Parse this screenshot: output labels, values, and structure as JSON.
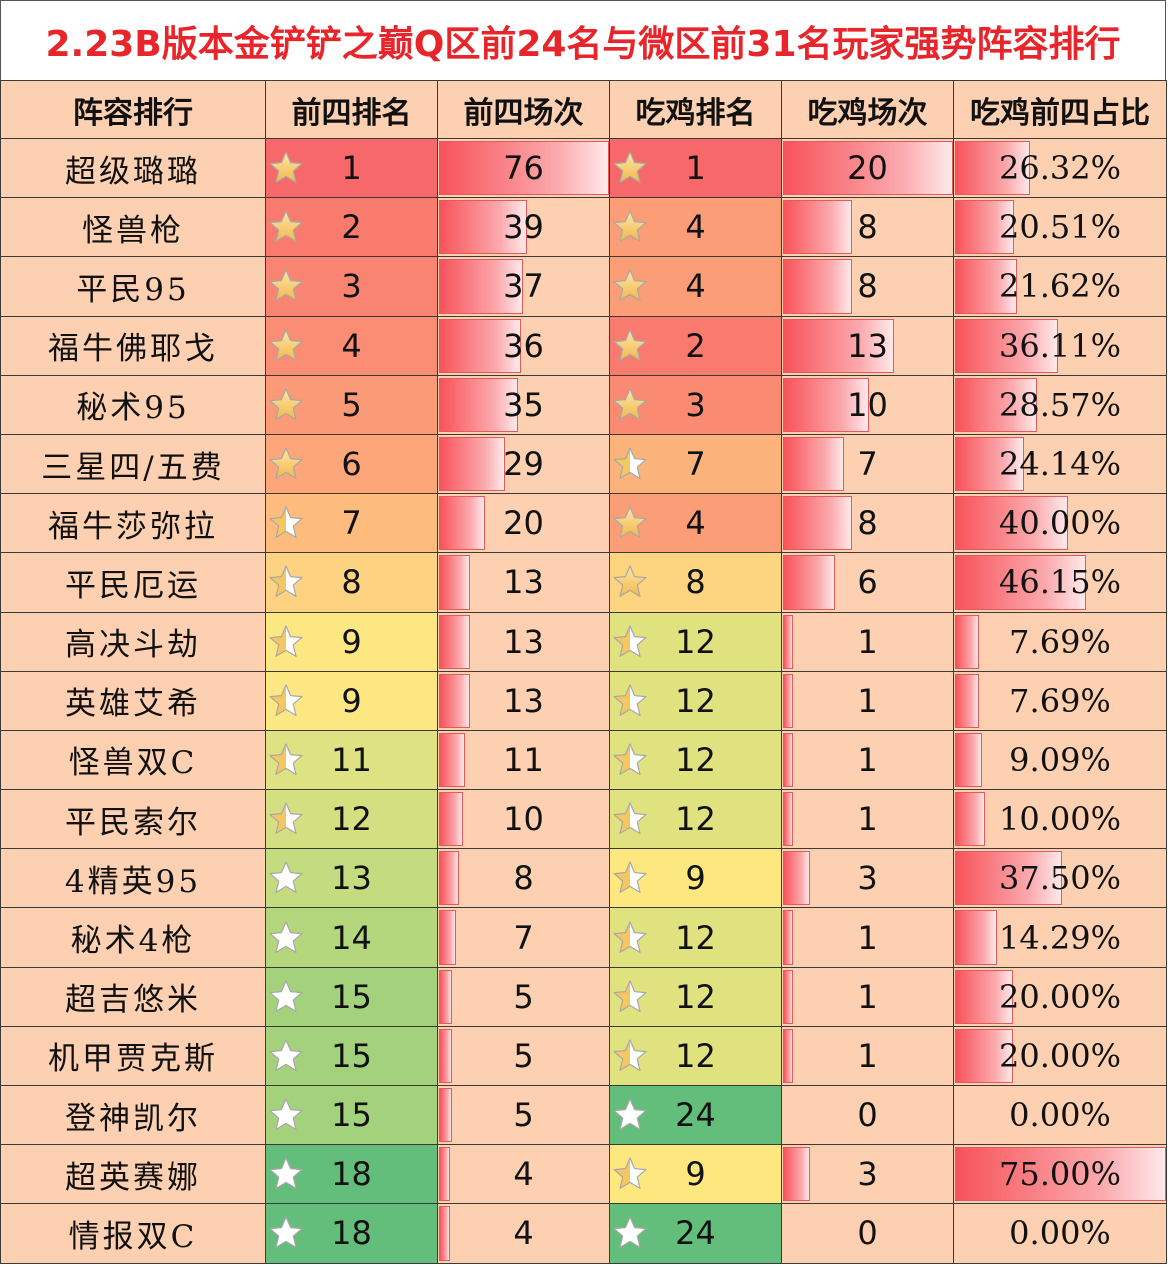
{
  "title": "2.23B版本金铲铲之巅Q区前24名与微区前31名玩家强势阵容排行",
  "headers": [
    "阵容排行",
    "前四排名",
    "前四场次",
    "吃鸡排名",
    "吃鸡场次",
    "吃鸡前四占比"
  ],
  "rows": [
    {
      "name": "超级璐璐",
      "top4_rank": "1",
      "top4_games": "76",
      "win_rank": "1",
      "win_games": "20",
      "win_ratio": "26.32%",
      "top4_rank_color": "#f7686a",
      "win_rank_color": "#f7686a",
      "top4_star": "gold-star",
      "win_star": "gold-star",
      "top4_games_bar": 1.0,
      "win_games_bar": 1.0,
      "win_ratio_bar": 0.351
    },
    {
      "name": "怪兽枪",
      "top4_rank": "2",
      "top4_games": "39",
      "win_rank": "4",
      "win_games": "8",
      "win_ratio": "20.51%",
      "top4_rank_color": "#f87b6e",
      "win_rank_color": "#fb9d76",
      "top4_star": "gold-star",
      "win_star": "gold-star",
      "top4_games_bar": 0.513,
      "win_games_bar": 0.4,
      "win_ratio_bar": 0.273
    },
    {
      "name": "平民95",
      "top4_rank": "3",
      "top4_games": "37",
      "win_rank": "4",
      "win_games": "8",
      "win_ratio": "21.62%",
      "top4_rank_color": "#f98471",
      "win_rank_color": "#fb9d76",
      "top4_star": "gold-star",
      "win_star": "gold-star",
      "top4_games_bar": 0.487,
      "win_games_bar": 0.4,
      "win_ratio_bar": 0.288
    },
    {
      "name": "福牛佛耶戈",
      "top4_rank": "4",
      "top4_games": "36",
      "win_rank": "2",
      "win_games": "13",
      "win_ratio": "36.11%",
      "top4_rank_color": "#fa8d73",
      "win_rank_color": "#f97a6e",
      "top4_star": "gold-star",
      "win_star": "gold-star",
      "top4_games_bar": 0.474,
      "win_games_bar": 0.65,
      "win_ratio_bar": 0.481
    },
    {
      "name": "秘术95",
      "top4_rank": "5",
      "top4_games": "35",
      "win_rank": "3",
      "win_games": "10",
      "win_ratio": "28.57%",
      "top4_rank_color": "#fb9a76",
      "win_rank_color": "#fa8a72",
      "top4_star": "gold-star",
      "win_star": "gold-star",
      "top4_games_bar": 0.461,
      "win_games_bar": 0.5,
      "win_ratio_bar": 0.381
    },
    {
      "name": "三星四/五费",
      "top4_rank": "6",
      "top4_games": "29",
      "win_rank": "7",
      "win_games": "7",
      "win_ratio": "24.14%",
      "top4_rank_color": "#fca679",
      "win_rank_color": "#fcb27b",
      "top4_star": "gold-star",
      "win_star": "half-star",
      "top4_games_bar": 0.382,
      "win_games_bar": 0.35,
      "win_ratio_bar": 0.322
    },
    {
      "name": "福牛莎弥拉",
      "top4_rank": "7",
      "top4_games": "20",
      "win_rank": "4",
      "win_games": "8",
      "win_ratio": "40.00%",
      "top4_rank_color": "#fdbb7d",
      "win_rank_color": "#fb9d76",
      "top4_star": "half-star",
      "win_star": "gold-star",
      "top4_games_bar": 0.263,
      "win_games_bar": 0.4,
      "win_ratio_bar": 0.533
    },
    {
      "name": "平民厄运",
      "top4_rank": "8",
      "top4_games": "13",
      "win_rank": "8",
      "win_games": "6",
      "win_ratio": "46.15%",
      "top4_rank_color": "#fdd281",
      "win_rank_color": "#fdd480",
      "top4_star": "half-star",
      "win_star": "gold-star",
      "top4_games_bar": 0.171,
      "win_games_bar": 0.3,
      "win_ratio_bar": 0.615
    },
    {
      "name": "高决斗劫",
      "top4_rank": "9",
      "top4_games": "13",
      "win_rank": "12",
      "win_games": "1",
      "win_ratio": "7.69%",
      "top4_rank_color": "#fde783",
      "win_rank_color": "#dfe27f",
      "top4_star": "half-star",
      "win_star": "half-star",
      "top4_games_bar": 0.171,
      "win_games_bar": 0.05,
      "win_ratio_bar": 0.103
    },
    {
      "name": "英雄艾希",
      "top4_rank": "9",
      "top4_games": "13",
      "win_rank": "12",
      "win_games": "1",
      "win_ratio": "7.69%",
      "top4_rank_color": "#fde783",
      "win_rank_color": "#dfe27f",
      "top4_star": "half-star",
      "win_star": "half-star",
      "top4_games_bar": 0.171,
      "win_games_bar": 0.05,
      "win_ratio_bar": 0.103
    },
    {
      "name": "怪兽双C",
      "top4_rank": "11",
      "top4_games": "11",
      "win_rank": "12",
      "win_games": "1",
      "win_ratio": "9.09%",
      "top4_rank_color": "#dfe282",
      "win_rank_color": "#dfe27f",
      "top4_star": "half-star",
      "win_star": "half-star",
      "top4_games_bar": 0.145,
      "win_games_bar": 0.05,
      "win_ratio_bar": 0.121
    },
    {
      "name": "平民索尔",
      "top4_rank": "12",
      "top4_games": "10",
      "win_rank": "12",
      "win_games": "1",
      "win_ratio": "10.00%",
      "top4_rank_color": "#d4df81",
      "win_rank_color": "#dfe27f",
      "top4_star": "half-star",
      "win_star": "half-star",
      "top4_games_bar": 0.132,
      "win_games_bar": 0.05,
      "win_ratio_bar": 0.133
    },
    {
      "name": "4精英95",
      "top4_rank": "13",
      "top4_games": "8",
      "win_rank": "9",
      "win_games": "3",
      "win_ratio": "37.50%",
      "top4_rank_color": "#c5db7f",
      "win_rank_color": "#fde880",
      "top4_star": "white-star",
      "win_star": "half-star",
      "top4_games_bar": 0.105,
      "win_games_bar": 0.15,
      "win_ratio_bar": 0.5
    },
    {
      "name": "秘术4枪",
      "top4_rank": "14",
      "top4_games": "7",
      "win_rank": "12",
      "win_games": "1",
      "win_ratio": "14.29%",
      "top4_rank_color": "#b4d67d",
      "win_rank_color": "#dfe27f",
      "top4_star": "white-star",
      "win_star": "half-star",
      "top4_games_bar": 0.092,
      "win_games_bar": 0.05,
      "win_ratio_bar": 0.191
    },
    {
      "name": "超吉悠米",
      "top4_rank": "15",
      "top4_games": "5",
      "win_rank": "12",
      "win_games": "1",
      "win_ratio": "20.00%",
      "top4_rank_color": "#a4d17b",
      "win_rank_color": "#dfe27f",
      "top4_star": "white-star",
      "win_star": "half-star",
      "top4_games_bar": 0.066,
      "win_games_bar": 0.05,
      "win_ratio_bar": 0.267
    },
    {
      "name": "机甲贾克斯",
      "top4_rank": "15",
      "top4_games": "5",
      "win_rank": "12",
      "win_games": "1",
      "win_ratio": "20.00%",
      "top4_rank_color": "#a4d17b",
      "win_rank_color": "#dfe27f",
      "top4_star": "white-star",
      "win_star": "half-star",
      "top4_games_bar": 0.066,
      "win_games_bar": 0.05,
      "win_ratio_bar": 0.267
    },
    {
      "name": "登神凯尔",
      "top4_rank": "15",
      "top4_games": "5",
      "win_rank": "24",
      "win_games": "0",
      "win_ratio": "0.00%",
      "top4_rank_color": "#a4d17b",
      "win_rank_color": "#63bd7b",
      "top4_star": "white-star",
      "win_star": "white-star",
      "top4_games_bar": 0.066,
      "win_games_bar": 0.0,
      "win_ratio_bar": 0.0
    },
    {
      "name": "超英赛娜",
      "top4_rank": "18",
      "top4_games": "4",
      "win_rank": "9",
      "win_games": "3",
      "win_ratio": "75.00%",
      "top4_rank_color": "#63be7b",
      "win_rank_color": "#fde880",
      "top4_star": "white-star",
      "win_star": "half-star",
      "top4_games_bar": 0.053,
      "win_games_bar": 0.15,
      "win_ratio_bar": 1.0
    },
    {
      "name": "情报双C",
      "top4_rank": "18",
      "top4_games": "4",
      "win_rank": "24",
      "win_games": "0",
      "win_ratio": "0.00%",
      "top4_rank_color": "#63be7b",
      "win_rank_color": "#63bd7b",
      "top4_star": "white-star",
      "win_star": "white-star",
      "top4_games_bar": 0.053,
      "win_games_bar": 0.0,
      "win_ratio_bar": 0.0
    }
  ]
}
